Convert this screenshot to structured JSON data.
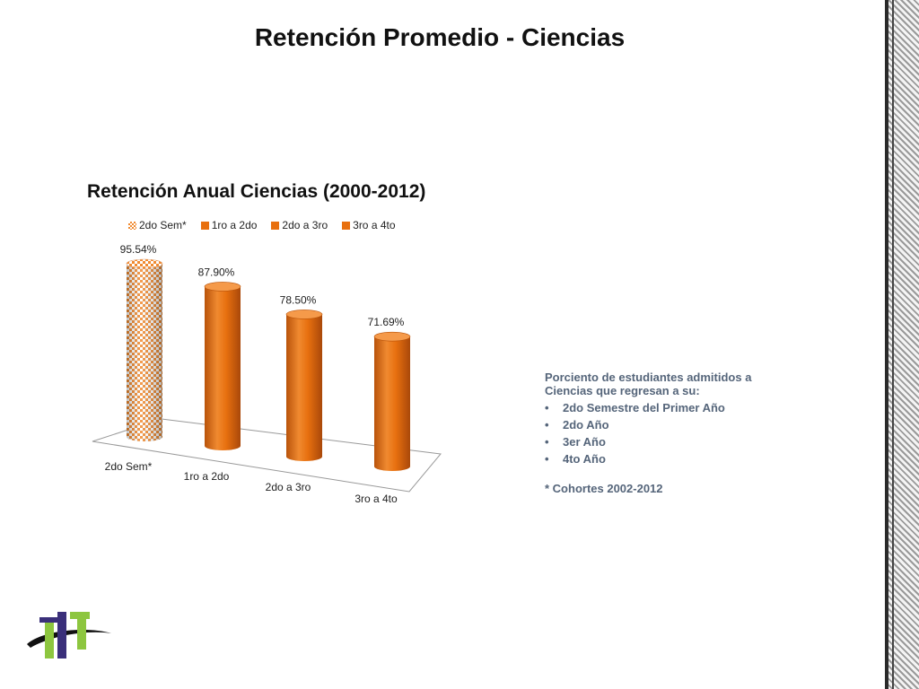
{
  "slide": {
    "title": "Retención Promedio - Ciencias"
  },
  "chart_data": {
    "type": "bar",
    "title": "Retención Anual Ciencias (2000-2012)",
    "categories": [
      "2do Sem*",
      "1ro a 2do",
      "2do a 3ro",
      "3ro a 4to"
    ],
    "values": [
      95.54,
      87.9,
      78.5,
      71.69
    ],
    "data_labels": [
      "95.54%",
      "87.90%",
      "78.50%",
      "71.69%"
    ],
    "legend": [
      "2do Sem*",
      "1ro a 2do",
      "2do a 3ro",
      "3ro a 4to"
    ],
    "legend_position": "top",
    "bar_style": "3d-cylinder",
    "ylim": [
      0,
      100
    ],
    "grid": false,
    "colors": {
      "pattern_bar": "#f08a30",
      "solid_bar": "#e8700f",
      "solid_bar_dark": "#b9530a",
      "solid_bar_light": "#f59a4a"
    }
  },
  "side_note": {
    "intro": "Porciento de estudiantes admitidos a Ciencias que regresan a su:",
    "items": [
      "2do Semestre del Primer Año",
      "2do Año",
      "3er Año",
      "4to Año"
    ],
    "footnote": "* Cohortes 2002-2012",
    "color": "#55657a"
  },
  "icons": {
    "logo": "institution-logo-icon",
    "border": "decorative-border"
  }
}
